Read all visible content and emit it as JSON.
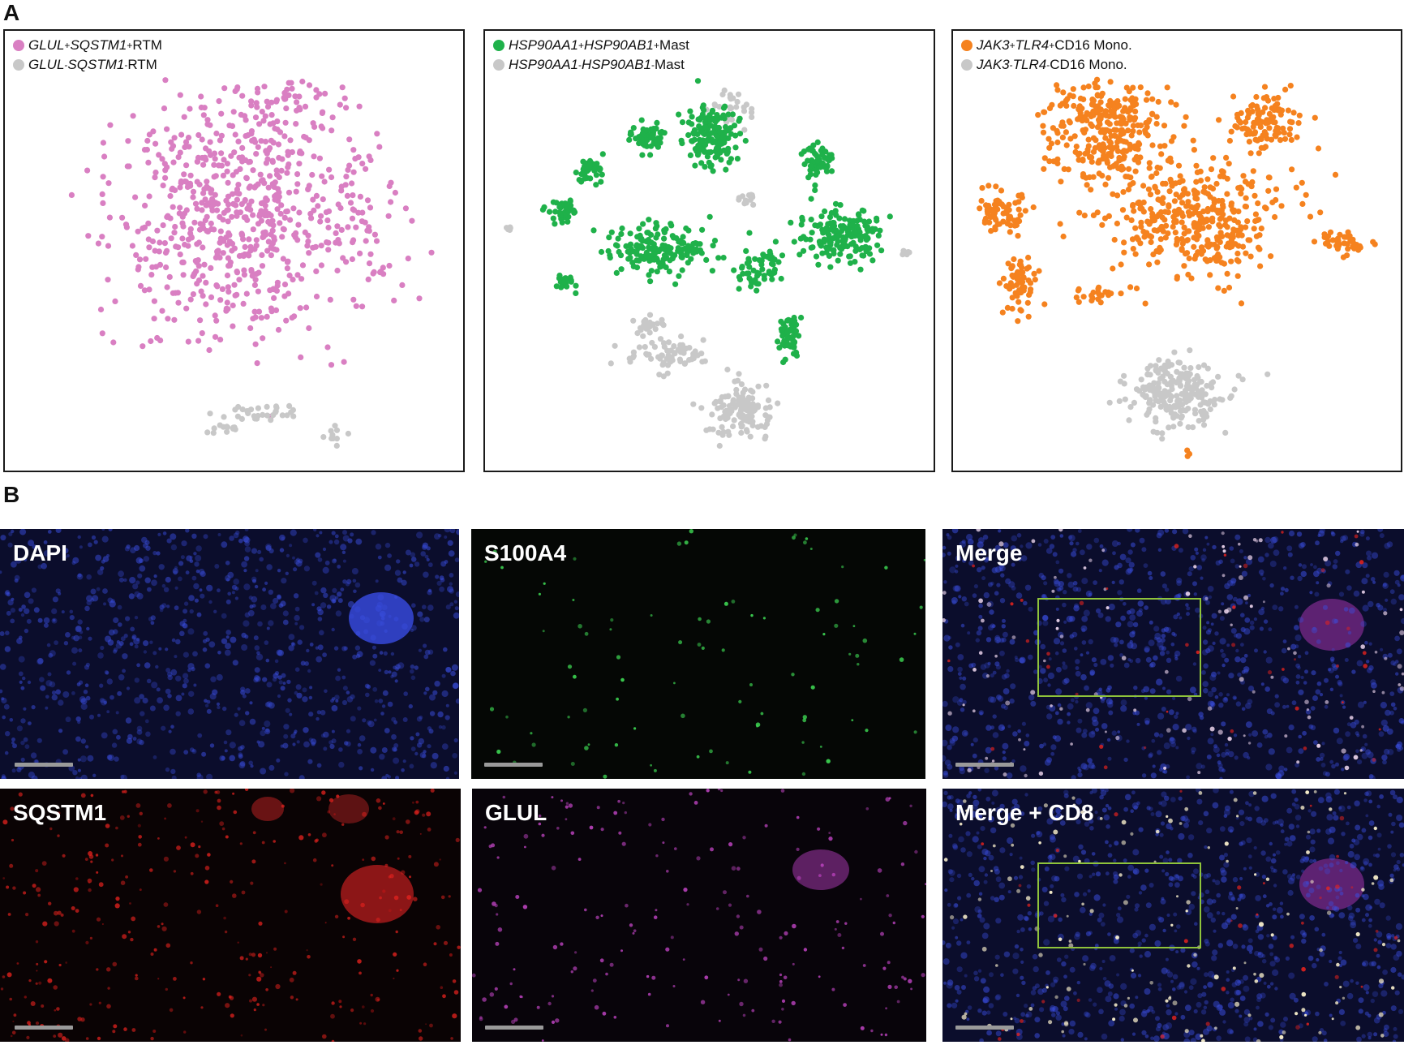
{
  "panel_letters": {
    "a": "A",
    "b": "B"
  },
  "tsne_panels": [
    {
      "id": "rtm",
      "legend": [
        {
          "gene1": "GLUL",
          "sign1": "+",
          "gene2": "SQSTM1",
          "sign2": "+",
          "cell": "RTM",
          "color": "#d97fc2"
        },
        {
          "gene1": "GLUL",
          "sign1": "-",
          "gene2": "SQSTM1",
          "sign2": "-",
          "cell": "RTM",
          "color": "#c8c8c8"
        }
      ]
    },
    {
      "id": "mast",
      "legend": [
        {
          "gene1": "HSP90AA1",
          "sign1": "+",
          "gene2": "HSP90AB1",
          "sign2": "+",
          "cell": "Mast",
          "color": "#1fb14a"
        },
        {
          "gene1": "HSP90AA1",
          "sign1": "-",
          "gene2": "HSP90AB1",
          "sign2": "-",
          "cell": "Mast",
          "color": "#c8c8c8"
        }
      ]
    },
    {
      "id": "mono",
      "legend": [
        {
          "gene1": "JAK3",
          "sign1": "+",
          "gene2": "TLR4",
          "sign2": "+",
          "cell": "CD16 Mono.",
          "color": "#f5821f"
        },
        {
          "gene1": "JAK3",
          "sign1": "-",
          "gene2": "TLR4",
          "sign2": "-",
          "cell": "CD16 Mono.",
          "color": "#c8c8c8"
        }
      ]
    }
  ],
  "micrographs": [
    {
      "id": "dapi",
      "label": "DAPI",
      "channel": "blue",
      "color": "#3c4fe0"
    },
    {
      "id": "s100a4",
      "label": "S100A4",
      "channel": "green",
      "color": "#35d24a"
    },
    {
      "id": "merge",
      "label": "Merge",
      "channel": "merge",
      "color": "#e8e0ff",
      "box_color": "#8fc33b"
    },
    {
      "id": "sqstm1",
      "label": "SQSTM1",
      "channel": "red",
      "color": "#e3221e"
    },
    {
      "id": "glul",
      "label": "GLUL",
      "channel": "magenta",
      "color": "#c546c8"
    },
    {
      "id": "merge_cd8",
      "label": "Merge + CD8",
      "channel": "merge",
      "color": "#f3efc8",
      "box_color": "#8fc33b"
    }
  ]
}
